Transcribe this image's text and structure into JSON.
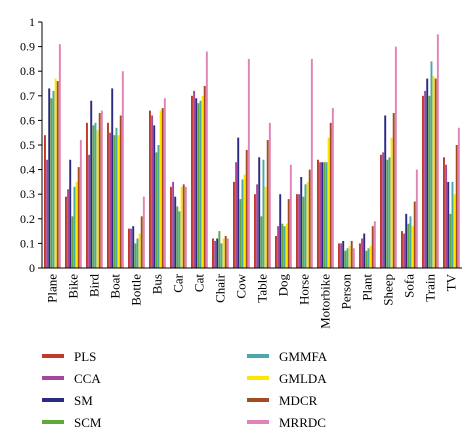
{
  "chart_data": {
    "type": "bar",
    "title": "",
    "xlabel": "",
    "ylabel": "",
    "ylim": [
      0,
      1
    ],
    "yticks": [
      0,
      0.1,
      0.2,
      0.3,
      0.4,
      0.5,
      0.6,
      0.7,
      0.8,
      0.9,
      1
    ],
    "grid": false,
    "legend_position": "bottom",
    "categories": [
      "Plane",
      "Bike",
      "Bird",
      "Boat",
      "Bottle",
      "Bus",
      "Car",
      "Cat",
      "Chair",
      "Cow",
      "Table",
      "Dog",
      "Horse",
      "Motorbike",
      "Person",
      "Plant",
      "Sheep",
      "Sofa",
      "Train",
      "TV"
    ],
    "series": [
      {
        "name": "PLS",
        "color": "#c0392b",
        "values": [
          0.54,
          0.29,
          0.59,
          0.59,
          0.16,
          0.64,
          0.33,
          0.7,
          0.12,
          0.35,
          0.3,
          0.13,
          0.3,
          0.44,
          0.1,
          0.1,
          0.46,
          0.15,
          0.7,
          0.45
        ]
      },
      {
        "name": "CCA",
        "color": "#a6479b",
        "values": [
          0.44,
          0.32,
          0.46,
          0.55,
          0.16,
          0.62,
          0.35,
          0.72,
          0.11,
          0.43,
          0.34,
          0.17,
          0.3,
          0.43,
          0.1,
          0.12,
          0.47,
          0.14,
          0.72,
          0.42
        ]
      },
      {
        "name": "SM",
        "color": "#2b2b82",
        "values": [
          0.73,
          0.44,
          0.68,
          0.73,
          0.17,
          0.58,
          0.29,
          0.69,
          0.12,
          0.53,
          0.45,
          0.3,
          0.37,
          0.43,
          0.11,
          0.14,
          0.62,
          0.22,
          0.77,
          0.35
        ]
      },
      {
        "name": "SCM",
        "color": "#5fa83a",
        "values": [
          0.69,
          0.21,
          0.58,
          0.54,
          0.1,
          0.47,
          0.25,
          0.67,
          0.15,
          0.28,
          0.21,
          0.18,
          0.29,
          0.43,
          0.07,
          0.07,
          0.44,
          0.18,
          0.7,
          0.22
        ]
      },
      {
        "name": "GMMFA",
        "color": "#4aa8a8",
        "values": [
          0.72,
          0.33,
          0.59,
          0.57,
          0.12,
          0.5,
          0.23,
          0.68,
          0.1,
          0.36,
          0.44,
          0.17,
          0.34,
          0.43,
          0.08,
          0.08,
          0.45,
          0.21,
          0.84,
          0.35
        ]
      },
      {
        "name": "GMLDA",
        "color": "#ffe600",
        "values": [
          0.77,
          0.35,
          0.56,
          0.54,
          0.14,
          0.64,
          0.33,
          0.7,
          0.12,
          0.38,
          0.33,
          0.18,
          0.35,
          0.53,
          0.09,
          0.09,
          0.53,
          0.17,
          0.78,
          0.3
        ]
      },
      {
        "name": "MDCR",
        "color": "#a34a1e",
        "values": [
          0.76,
          0.41,
          0.63,
          0.62,
          0.21,
          0.65,
          0.34,
          0.74,
          0.13,
          0.48,
          0.52,
          0.28,
          0.4,
          0.59,
          0.11,
          0.17,
          0.63,
          0.27,
          0.77,
          0.5
        ]
      },
      {
        "name": "MRRDC",
        "color": "#e283b8",
        "values": [
          0.91,
          0.52,
          0.64,
          0.8,
          0.29,
          0.69,
          0.33,
          0.88,
          0.12,
          0.85,
          0.59,
          0.42,
          0.85,
          0.65,
          0.08,
          0.19,
          0.9,
          0.4,
          0.95,
          0.57
        ]
      }
    ]
  }
}
